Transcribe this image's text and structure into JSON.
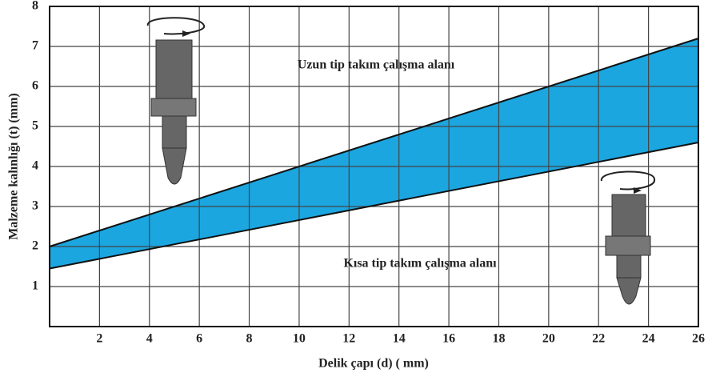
{
  "chart_data": {
    "type": "band",
    "x_label": "Delik çapı (d) ( mm)",
    "y_label": "Malzeme kalınlığı (t) (mm)",
    "annotations": [
      "Uzun tip takım çalışma alanı",
      "Kısa tip takım çalışma alanı"
    ],
    "fill_color": "#1ba6e0",
    "series": [
      {
        "name": "Uzun tip",
        "color": "#111111",
        "x": [
          0,
          26
        ],
        "values": [
          2.0,
          7.2
        ]
      },
      {
        "name": "Kısa tip",
        "color": "#111111",
        "x": [
          0,
          26
        ],
        "values": [
          1.45,
          4.6
        ]
      }
    ],
    "xlim": [
      0,
      26
    ],
    "ylim": [
      0,
      8
    ],
    "xticks": [
      2,
      4,
      6,
      8,
      10,
      12,
      14,
      16,
      18,
      20,
      22,
      24,
      26
    ],
    "yticks": [
      1,
      2,
      3,
      4,
      5,
      6,
      7,
      8
    ],
    "grid": true
  }
}
